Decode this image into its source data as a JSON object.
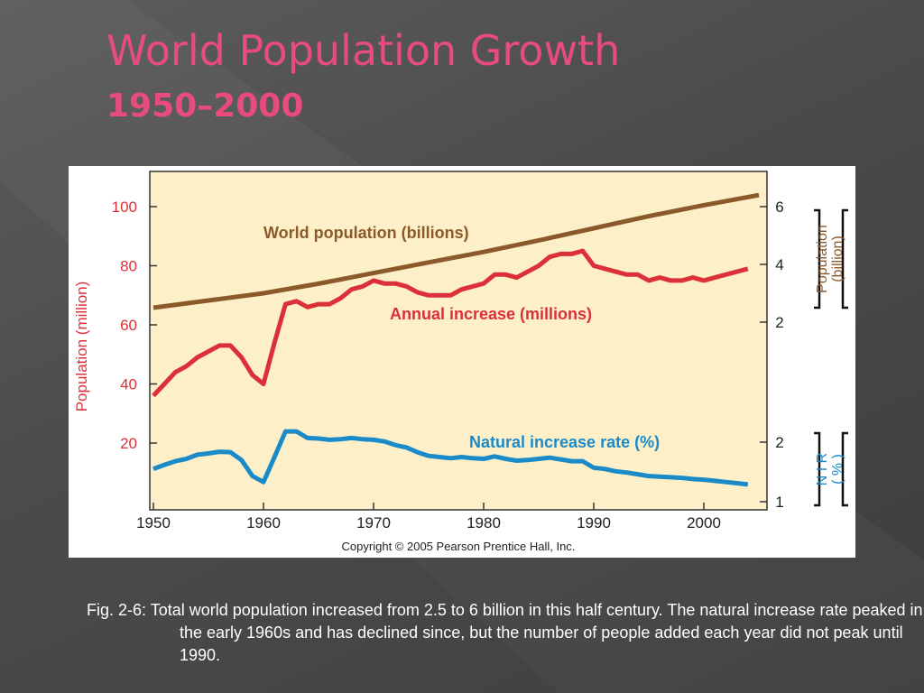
{
  "slide": {
    "title": "World Population Growth",
    "subtitle": "1950–2000",
    "caption": "Fig. 2-6: Total world population increased from 2.5 to 6 billion in this half century. The natural increase rate peaked in the early 1960s and has declined since, but the number of people added each year did not peak until 1990."
  },
  "chart_data": {
    "type": "line",
    "copyright": "Copyright © 2005 Pearson Prentice Hall, Inc.",
    "x_ticks": [
      "1950",
      "1960",
      "1970",
      "1980",
      "1990",
      "2000"
    ],
    "xlim": [
      1950,
      2006
    ],
    "axes": {
      "left": {
        "label": "Population (million)",
        "ticks": [
          "20",
          "40",
          "60",
          "80",
          "100"
        ],
        "ylim": [
          0,
          110
        ]
      },
      "right_population": {
        "label_line1": "Population",
        "label_line2": "(billion)",
        "ticks": [
          "2",
          "4",
          "6"
        ]
      },
      "right_nir": {
        "label_line1": "N I R",
        "label_line2": "( % )",
        "ticks": [
          "1",
          "2"
        ]
      }
    },
    "colors": {
      "population": "#8b5a2b",
      "annual": "#dc3038",
      "nir": "#1a8ac8",
      "plot_bg": "#fdf0c8"
    },
    "series": [
      {
        "name": "World population (billions)",
        "axis": "billions",
        "x": [
          1950,
          1955,
          1960,
          1965,
          1970,
          1975,
          1980,
          1985,
          1990,
          1995,
          2000,
          2005
        ],
        "values": [
          2.5,
          2.75,
          3.0,
          3.33,
          3.7,
          4.07,
          4.43,
          4.83,
          5.25,
          5.67,
          6.05,
          6.4
        ]
      },
      {
        "name": "Annual increase (millions)",
        "axis": "millions",
        "x": [
          1950,
          1951,
          1952,
          1953,
          1954,
          1955,
          1956,
          1957,
          1958,
          1959,
          1960,
          1961,
          1962,
          1963,
          1964,
          1965,
          1966,
          1967,
          1968,
          1969,
          1970,
          1971,
          1972,
          1973,
          1974,
          1975,
          1976,
          1977,
          1978,
          1979,
          1980,
          1981,
          1982,
          1983,
          1984,
          1985,
          1986,
          1987,
          1988,
          1989,
          1990,
          1991,
          1992,
          1993,
          1994,
          1995,
          1996,
          1997,
          1998,
          1999,
          2000,
          2001,
          2002,
          2003,
          2004
        ],
        "values": [
          36,
          40,
          44,
          46,
          49,
          51,
          53,
          53,
          49,
          43,
          40,
          54,
          67,
          68,
          66,
          67,
          67,
          69,
          72,
          73,
          75,
          74,
          74,
          73,
          71,
          70,
          70,
          70,
          72,
          73,
          74,
          77,
          77,
          76,
          78,
          80,
          83,
          84,
          84,
          85,
          80,
          79,
          78,
          77,
          77,
          75,
          76,
          75,
          75,
          76,
          75,
          76,
          77,
          78,
          79
        ]
      },
      {
        "name": "Natural increase rate (%)",
        "axis": "nir",
        "x": [
          1950,
          1951,
          1952,
          1953,
          1954,
          1955,
          1956,
          1957,
          1958,
          1959,
          1960,
          1961,
          1962,
          1963,
          1964,
          1965,
          1966,
          1967,
          1968,
          1969,
          1970,
          1971,
          1972,
          1973,
          1974,
          1975,
          1976,
          1977,
          1978,
          1979,
          1980,
          1981,
          1982,
          1983,
          1984,
          1985,
          1986,
          1987,
          1988,
          1989,
          1990,
          1991,
          1992,
          1993,
          1994,
          1995,
          1996,
          1997,
          1998,
          1999,
          2000,
          2001,
          2002,
          2003,
          2004
        ],
        "values": [
          1.55,
          1.62,
          1.68,
          1.72,
          1.79,
          1.81,
          1.84,
          1.83,
          1.7,
          1.43,
          1.33,
          1.75,
          2.18,
          2.18,
          2.07,
          2.06,
          2.04,
          2.05,
          2.07,
          2.05,
          2.04,
          2.01,
          1.95,
          1.91,
          1.83,
          1.77,
          1.75,
          1.73,
          1.75,
          1.73,
          1.72,
          1.76,
          1.72,
          1.69,
          1.7,
          1.72,
          1.74,
          1.71,
          1.68,
          1.68,
          1.57,
          1.55,
          1.51,
          1.49,
          1.46,
          1.43,
          1.42,
          1.41,
          1.4,
          1.38,
          1.37,
          1.35,
          1.33,
          1.31,
          1.29
        ]
      }
    ]
  }
}
